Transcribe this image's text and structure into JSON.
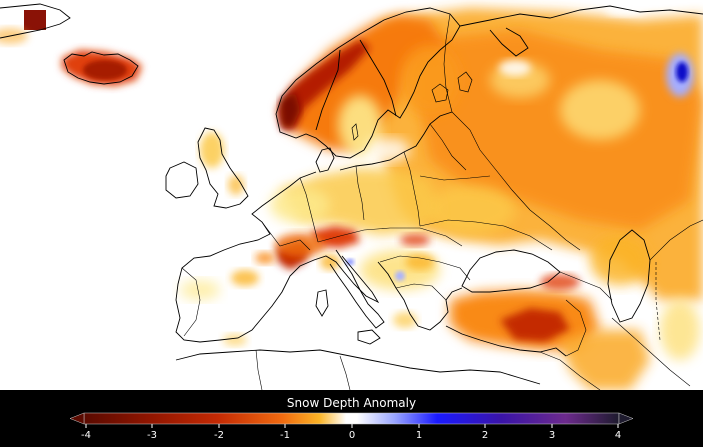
{
  "legend": {
    "title": "Snow Depth Anomaly",
    "ticks": [
      "-4",
      "-3",
      "-2",
      "-1",
      "0",
      "1",
      "2",
      "3",
      "4"
    ],
    "colors": {
      "dark": "#5a0a00",
      "red": "#b81d00",
      "orange_red": "#e0400a",
      "orange": "#f98a12",
      "amber": "#fbb426",
      "yellow": "#fde98c",
      "white": "#ffffff",
      "light_blue": "#9aa6ff",
      "blue": "#1a1aff",
      "indigo": "#3a14a8",
      "purple": "#6c2a8c",
      "dark_purple": "#1e1b2e"
    }
  },
  "map": {
    "description_regions": [
      "iceland",
      "norway",
      "sweden",
      "finland",
      "russia",
      "uk",
      "ireland",
      "france",
      "iberia",
      "italy",
      "balkans",
      "turkey",
      "central-europe"
    ]
  }
}
